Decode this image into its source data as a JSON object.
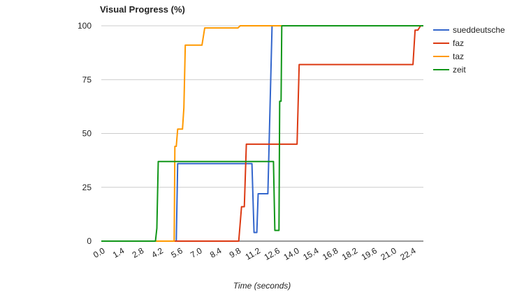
{
  "chart_data": {
    "type": "line",
    "title": "Visual Progress (%)",
    "xlabel": "Time (seconds)",
    "ylabel": "",
    "xlim": [
      0,
      23.2
    ],
    "ylim": [
      0,
      100
    ],
    "x_ticks": [
      "0.0",
      "1.4",
      "2.8",
      "4.2",
      "5.6",
      "7.0",
      "8.4",
      "9.8",
      "11.2",
      "12.6",
      "14.0",
      "15.4",
      "16.8",
      "18.2",
      "19.6",
      "21.0",
      "22.4"
    ],
    "y_ticks": [
      "0",
      "25",
      "50",
      "75",
      "100"
    ],
    "grid": "horizontal",
    "legend": "right",
    "series": [
      {
        "name": "sueddeutsche",
        "color": "#3366cc",
        "points": [
          [
            0,
            0
          ],
          [
            5.4,
            0
          ],
          [
            5.5,
            36
          ],
          [
            10.85,
            36
          ],
          [
            11.0,
            4
          ],
          [
            11.2,
            4
          ],
          [
            11.3,
            22
          ],
          [
            12.0,
            22
          ],
          [
            12.3,
            100
          ],
          [
            23.2,
            100
          ]
        ]
      },
      {
        "name": "faz",
        "color": "#dc3912",
        "points": [
          [
            0,
            0
          ],
          [
            9.9,
            0
          ],
          [
            10.1,
            16
          ],
          [
            10.3,
            16
          ],
          [
            10.45,
            45
          ],
          [
            14.1,
            45
          ],
          [
            14.25,
            82
          ],
          [
            22.45,
            82
          ],
          [
            22.6,
            98
          ],
          [
            22.8,
            98
          ],
          [
            23.0,
            100
          ],
          [
            23.2,
            100
          ]
        ]
      },
      {
        "name": "taz",
        "color": "#ff9900",
        "points": [
          [
            0,
            0
          ],
          [
            5.25,
            0
          ],
          [
            5.3,
            44
          ],
          [
            5.4,
            44
          ],
          [
            5.5,
            52
          ],
          [
            5.85,
            52
          ],
          [
            5.95,
            62
          ],
          [
            6.05,
            91
          ],
          [
            7.25,
            91
          ],
          [
            7.45,
            99
          ],
          [
            9.85,
            99
          ],
          [
            10.0,
            100
          ],
          [
            23.2,
            100
          ]
        ]
      },
      {
        "name": "zeit",
        "color": "#109618",
        "points": [
          [
            0,
            0
          ],
          [
            3.9,
            0
          ],
          [
            4.0,
            6
          ],
          [
            4.1,
            37
          ],
          [
            12.4,
            37
          ],
          [
            12.5,
            5
          ],
          [
            12.8,
            5
          ],
          [
            12.85,
            65
          ],
          [
            12.95,
            65
          ],
          [
            13.0,
            100
          ],
          [
            23.2,
            100
          ]
        ]
      }
    ]
  }
}
